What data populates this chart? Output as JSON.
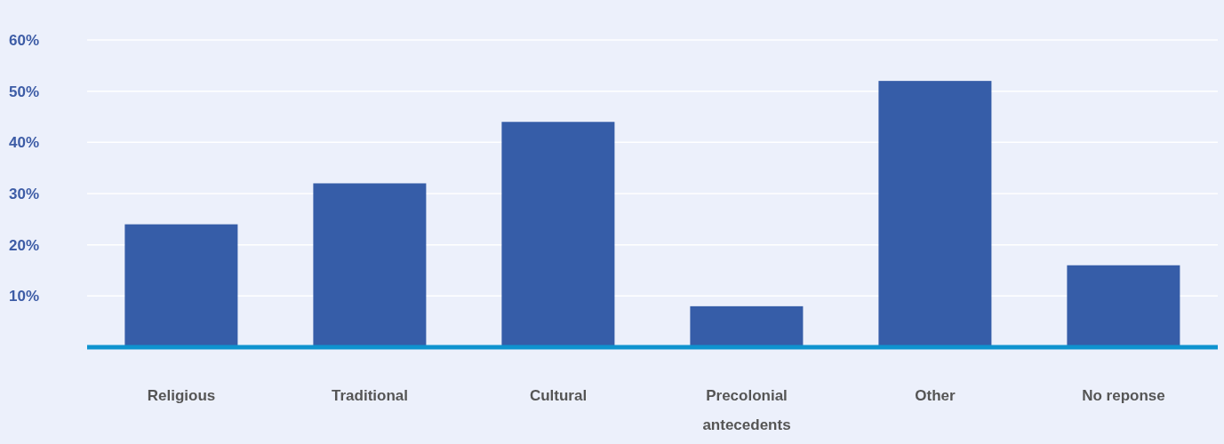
{
  "chart_data": {
    "type": "bar",
    "categories": [
      "Religious",
      "Traditional",
      "Cultural",
      "Precolonial antecedents",
      "Other",
      "No reponse"
    ],
    "values": [
      24,
      32,
      44,
      8,
      52,
      16
    ],
    "color": "#365da8",
    "ylim": [
      0,
      60
    ],
    "yticks": [
      {
        "value": 10,
        "label": "10%"
      },
      {
        "value": 20,
        "label": "20%"
      },
      {
        "value": 30,
        "label": "30%"
      },
      {
        "value": 40,
        "label": "40%"
      },
      {
        "value": 50,
        "label": "50%"
      },
      {
        "value": 60,
        "label": "60%"
      }
    ],
    "grid": "y"
  }
}
